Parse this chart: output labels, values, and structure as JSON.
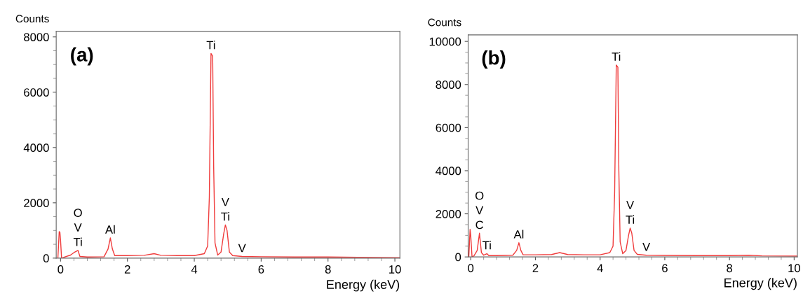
{
  "chart_data": [
    {
      "type": "line",
      "title": "(a)",
      "xlabel": "Energy (keV)",
      "ylabel": "Counts",
      "xlim": [
        -0.13,
        10.15
      ],
      "ylim": [
        0,
        8200
      ],
      "xticks": [
        0,
        2,
        4,
        6,
        8,
        10
      ],
      "yticks": [
        0,
        2000,
        4000,
        6000,
        8000
      ],
      "grid": false,
      "legend": false,
      "marker": "none",
      "line_style": "solid",
      "series": [
        {
          "color": "#f03c3c",
          "x": [
            -0.08,
            -0.04,
            -0.02,
            0.0,
            0.03,
            0.1,
            0.3,
            0.4,
            0.52,
            0.58,
            0.8,
            1.3,
            1.42,
            1.49,
            1.55,
            1.62,
            2.0,
            2.5,
            2.8,
            3.0,
            3.5,
            4.0,
            4.3,
            4.4,
            4.45,
            4.5,
            4.55,
            4.58,
            4.62,
            4.7,
            4.8,
            4.88,
            4.93,
            4.98,
            5.05,
            5.15,
            5.43,
            6.0,
            7.0,
            8.0,
            9.0,
            10.15
          ],
          "values": [
            0,
            960,
            940,
            650,
            0,
            30,
            110,
            200,
            280,
            60,
            40,
            50,
            330,
            730,
            330,
            90,
            90,
            100,
            160,
            100,
            90,
            90,
            160,
            440,
            2200,
            7400,
            7300,
            3300,
            550,
            110,
            220,
            880,
            1200,
            1000,
            220,
            90,
            60,
            50,
            40,
            40,
            30,
            20
          ]
        }
      ],
      "annotations": [
        {
          "text": "Ti",
          "x": 0.52,
          "y": 280
        },
        {
          "text": "V",
          "x": 0.52,
          "y": 280
        },
        {
          "text": "O",
          "x": 0.52,
          "y": 280
        },
        {
          "text": "Al",
          "x": 1.49,
          "y": 730
        },
        {
          "text": "Ti",
          "x": 4.5,
          "y": 7400
        },
        {
          "text": "Ti",
          "x": 4.93,
          "y": 1200
        },
        {
          "text": "V",
          "x": 4.93,
          "y": 1200
        },
        {
          "text": "V",
          "x": 5.43,
          "y": 60
        }
      ]
    },
    {
      "type": "line",
      "title": "(b)",
      "xlabel": "Energy (keV)",
      "ylabel": "Counts",
      "xlim": [
        -0.08,
        10.1
      ],
      "ylim": [
        0,
        10300
      ],
      "xticks": [
        0,
        2,
        4,
        6,
        8,
        10
      ],
      "yticks": [
        0,
        2000,
        4000,
        6000,
        8000,
        10000
      ],
      "grid": false,
      "legend": false,
      "marker": "none",
      "line_style": "solid",
      "series": [
        {
          "color": "#f03c3c",
          "x": [
            -0.06,
            -0.02,
            0.0,
            0.04,
            0.1,
            0.2,
            0.27,
            0.33,
            0.4,
            0.5,
            0.56,
            0.8,
            1.3,
            1.42,
            1.49,
            1.55,
            1.62,
            2.0,
            2.5,
            2.75,
            3.0,
            3.5,
            4.0,
            4.3,
            4.4,
            4.45,
            4.5,
            4.55,
            4.58,
            4.62,
            4.7,
            4.8,
            4.88,
            4.93,
            4.98,
            5.05,
            5.15,
            5.43,
            6.0,
            7.0,
            8.0,
            8.6,
            9.0,
            10.1
          ],
          "values": [
            0,
            1280,
            1000,
            0,
            50,
            300,
            1100,
            200,
            80,
            150,
            60,
            60,
            80,
            300,
            660,
            300,
            100,
            100,
            110,
            200,
            110,
            100,
            100,
            200,
            500,
            3000,
            8900,
            8800,
            4000,
            700,
            150,
            300,
            1000,
            1340,
            1100,
            300,
            120,
            80,
            70,
            60,
            60,
            80,
            50,
            40
          ]
        }
      ],
      "annotations": [
        {
          "text": "C",
          "x": 0.27,
          "y": 1100
        },
        {
          "text": "V",
          "x": 0.27,
          "y": 1100
        },
        {
          "text": "O",
          "x": 0.27,
          "y": 1100
        },
        {
          "text": "Ti",
          "x": 0.5,
          "y": 150
        },
        {
          "text": "Al",
          "x": 1.49,
          "y": 660
        },
        {
          "text": "Ti",
          "x": 4.5,
          "y": 8900
        },
        {
          "text": "Ti",
          "x": 4.93,
          "y": 1340
        },
        {
          "text": "V",
          "x": 4.93,
          "y": 1340
        },
        {
          "text": "V",
          "x": 5.43,
          "y": 80
        }
      ]
    }
  ]
}
